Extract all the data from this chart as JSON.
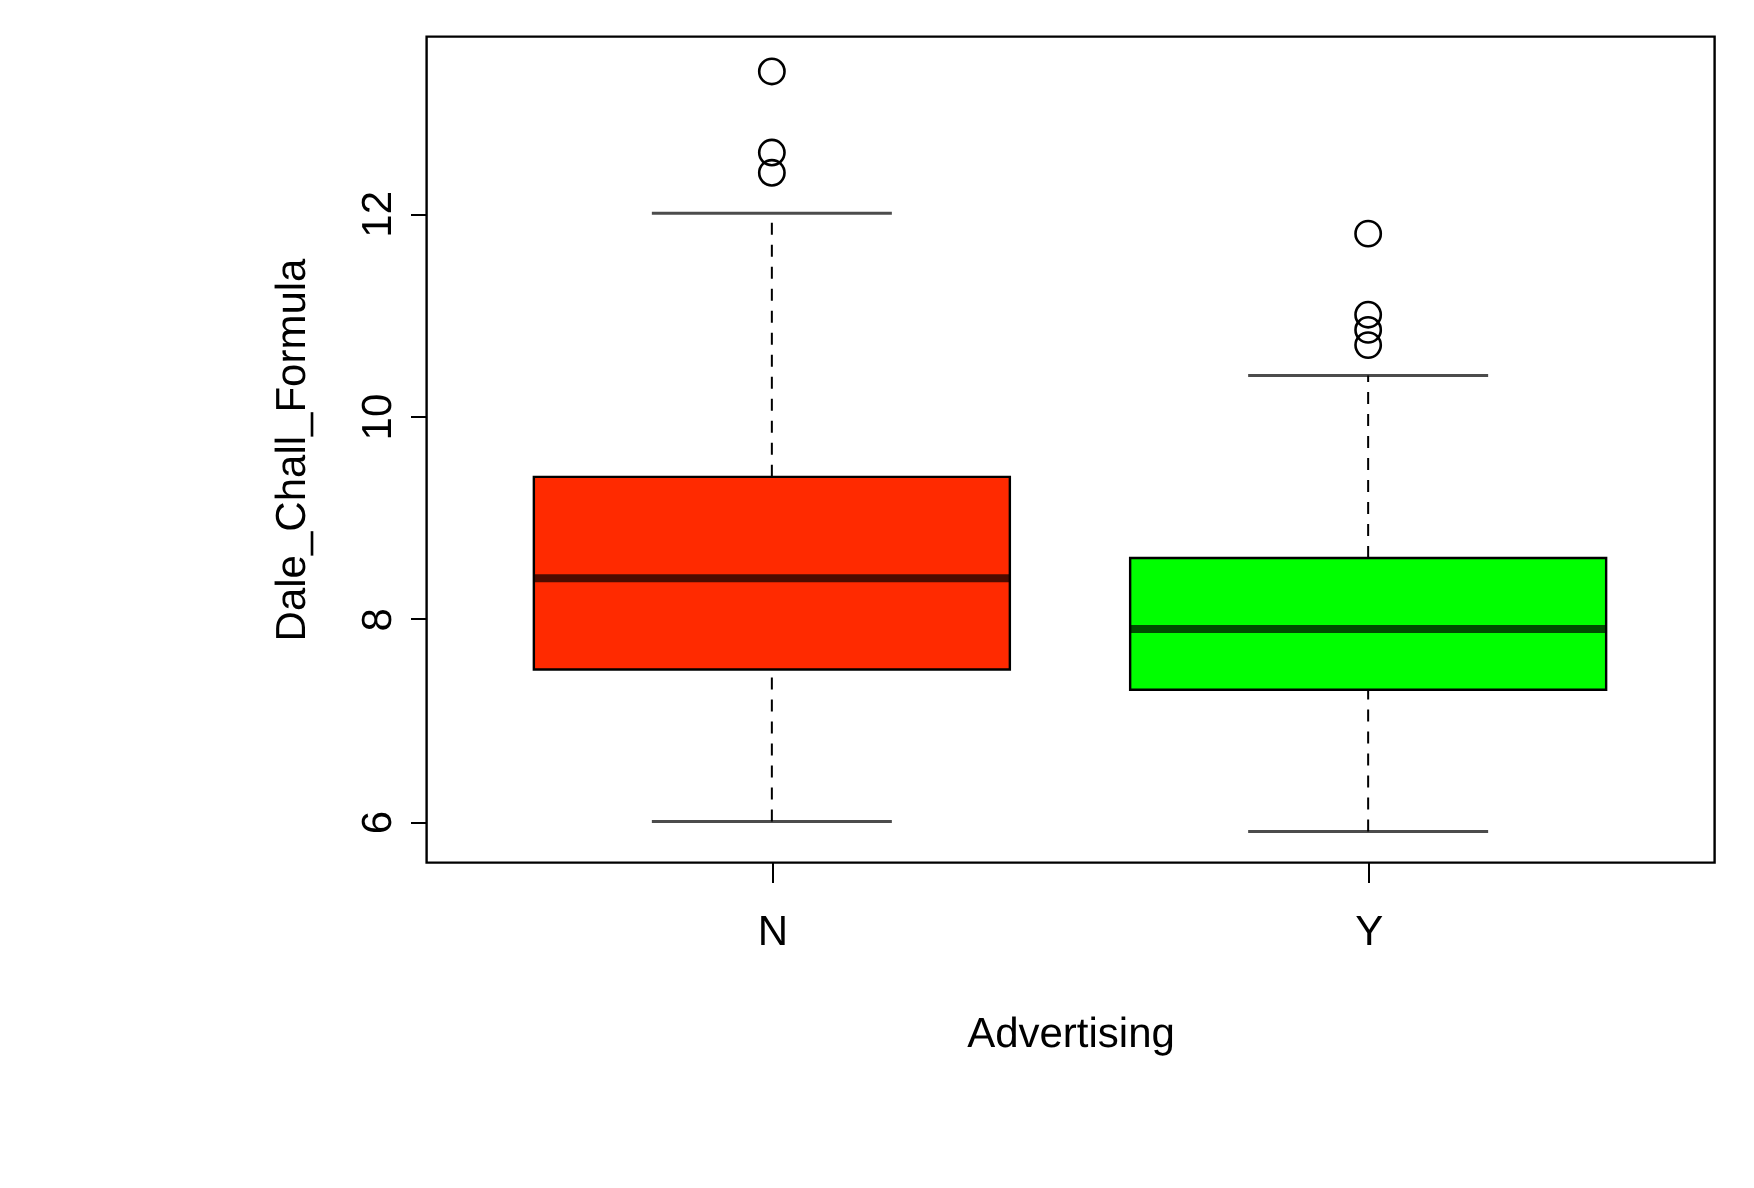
{
  "chart_data": {
    "type": "box",
    "xlabel": "Advertising",
    "ylabel": "Dale_Chall_Formula",
    "categories": [
      "N",
      "Y"
    ],
    "colors": [
      "#ff2a00",
      "#00ff00"
    ],
    "boxes": [
      {
        "low": 6.0,
        "q1": 7.5,
        "median": 8.4,
        "q3": 9.4,
        "high": 12.0,
        "outliers": [
          13.4,
          12.6,
          12.4
        ]
      },
      {
        "low": 5.9,
        "q1": 7.3,
        "median": 7.9,
        "q3": 8.6,
        "high": 10.4,
        "outliers": [
          11.8,
          11.0,
          10.85,
          10.7
        ]
      }
    ],
    "ylim": [
      5.6,
      13.75
    ],
    "yticks": [
      6,
      8,
      10,
      12
    ],
    "grid": false
  }
}
